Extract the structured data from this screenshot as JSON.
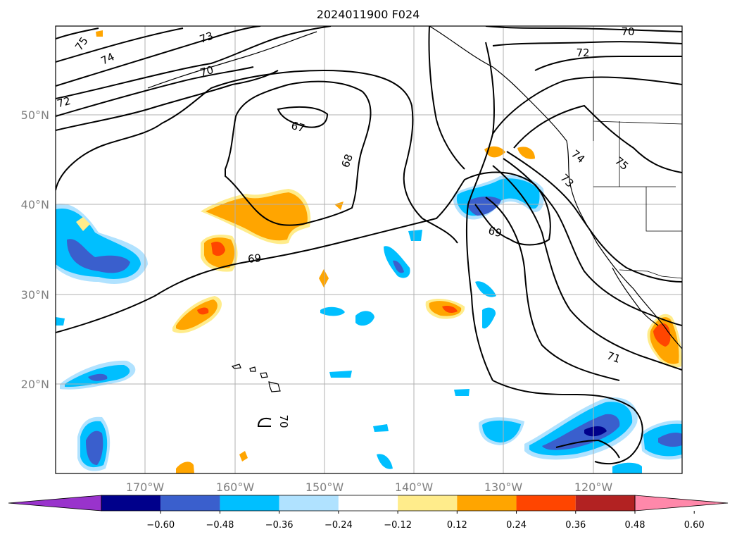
{
  "title": "2024011900 F024",
  "lat_labels": [
    "50°N",
    "40°N",
    "30°N",
    "20°N"
  ],
  "lon_labels": [
    "170°W",
    "160°W",
    "150°W",
    "140°W",
    "130°W",
    "120°W"
  ],
  "contour_labels": [
    "75",
    "74",
    "73",
    "70",
    "72",
    "67",
    "68",
    "69",
    "69",
    "72",
    "70",
    "74",
    "75",
    "73",
    "71",
    "70"
  ],
  "colorbar": {
    "ticks": [
      "−0.60",
      "−0.48",
      "−0.36",
      "−0.24",
      "−0.12",
      "0.12",
      "0.24",
      "0.36",
      "0.48",
      "0.60"
    ],
    "colors": [
      "#9933cc",
      "#00008b",
      "#3a5fcd",
      "#00bfff",
      "#b0e2ff",
      "#ffffff",
      "#ffec8b",
      "#ffa500",
      "#ff4500",
      "#b22222",
      "#ff88aa"
    ]
  },
  "colors": {
    "neg1": "#b0e2ff",
    "neg2": "#00bfff",
    "neg3": "#3a5fcd",
    "neg4": "#00008b",
    "pos1": "#ffec8b",
    "pos2": "#ffa500",
    "pos3": "#ff4500"
  }
}
